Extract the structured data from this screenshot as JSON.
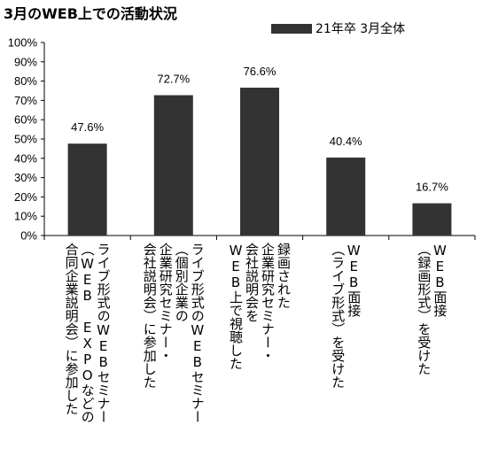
{
  "chart_data": {
    "type": "bar",
    "title": "3月のWEB上での活動状況",
    "legend": {
      "position": "top-right"
    },
    "series": [
      {
        "name": "21年卒 3月全体",
        "color": "#333333",
        "values": [
          47.6,
          72.7,
          76.6,
          40.4,
          16.7
        ]
      }
    ],
    "categories": [
      "ライブ形式のWEBセミナー\n（WEB EXPOなどの\n合同企業説明会）に参加した",
      "ライブ形式のWEBセミナー\n（個別企業の\n企業研究セミナー・\n会社説明会）に参加した",
      "録画された\n企業研究セミナー・\n会社説明会を\nWEB上で視聴した",
      "WEB面接\n（ライブ形式）を受けた",
      "WEB面接\n（録画形式）を受けた"
    ],
    "data_labels": [
      "47.6%",
      "72.7%",
      "76.6%",
      "40.4%",
      "16.7%"
    ],
    "ylim": [
      0,
      100
    ],
    "yticks": [
      "0%",
      "10%",
      "20%",
      "30%",
      "40%",
      "50%",
      "60%",
      "70%",
      "80%",
      "90%",
      "100%"
    ],
    "grid": false
  }
}
